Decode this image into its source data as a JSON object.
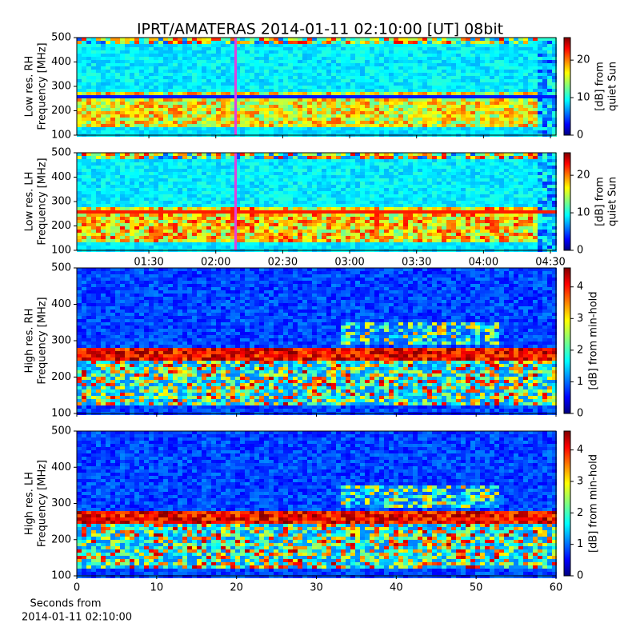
{
  "title": "IPRT/AMATERAS 2014-01-11 02:10:00 [UT]   08bit",
  "chart_data": [
    {
      "type": "heatmap",
      "ylabel": [
        "Low res. RH",
        "Frequency [MHz]"
      ],
      "ylim": [
        100,
        500
      ],
      "yticks": [
        100,
        200,
        300,
        400,
        500
      ],
      "colorbar": {
        "label": [
          "[dB] from",
          "quiet Sun"
        ],
        "lim": [
          0,
          26
        ],
        "ticks": [
          0,
          10,
          20
        ]
      }
    },
    {
      "type": "heatmap",
      "ylabel": [
        "Low res. LH",
        "Frequency [MHz]"
      ],
      "ylim": [
        100,
        500
      ],
      "yticks": [
        100,
        200,
        300,
        400,
        500
      ],
      "xlim": [
        57.7,
        272.5
      ],
      "xticks": [
        {
          "value": 90,
          "label": "01:30"
        },
        {
          "value": 120,
          "label": "02:00"
        },
        {
          "value": 150,
          "label": "02:30"
        },
        {
          "value": 180,
          "label": "03:00"
        },
        {
          "value": 210,
          "label": "03:30"
        },
        {
          "value": 240,
          "label": "04:00"
        },
        {
          "value": 270,
          "label": "04:30"
        }
      ],
      "colorbar": {
        "label": [
          "[dB] from",
          "quiet Sun"
        ],
        "lim": [
          0,
          26
        ],
        "ticks": [
          0,
          10,
          20
        ]
      }
    },
    {
      "type": "heatmap",
      "ylabel": [
        "High res. RH",
        "Frequency [MHz]"
      ],
      "ylim": [
        100,
        500
      ],
      "yticks": [
        100,
        200,
        300,
        400,
        500
      ],
      "colorbar": {
        "label": [
          "[dB] from min-hold"
        ],
        "lim": [
          0,
          4.6
        ],
        "ticks": [
          0,
          1,
          2,
          3,
          4
        ]
      }
    },
    {
      "type": "heatmap",
      "ylabel": [
        "High res. LH",
        "Frequency [MHz]"
      ],
      "ylim": [
        100,
        500
      ],
      "yticks": [
        100,
        200,
        300,
        400,
        500
      ],
      "xlim": [
        0,
        60
      ],
      "xticks": [
        0,
        10,
        20,
        30,
        40,
        50,
        60
      ],
      "xlabel": [
        "Seconds from",
        "2014-01-11 02:10:00"
      ],
      "colorbar": {
        "label": [
          "[dB] from min-hold"
        ],
        "lim": [
          0,
          4.6
        ],
        "ticks": [
          0,
          1,
          2,
          3,
          4
        ]
      }
    }
  ]
}
